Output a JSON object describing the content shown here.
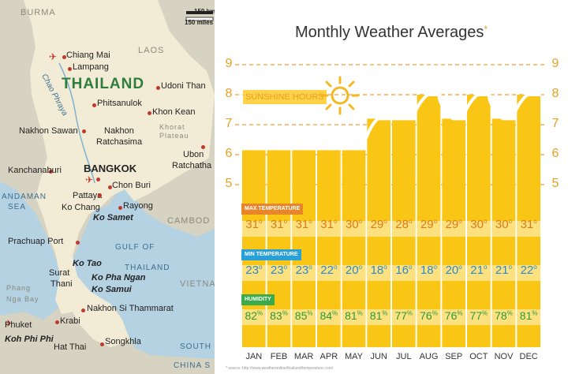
{
  "map": {
    "labels": {
      "burma": "BURMA",
      "laos": "LAOS",
      "thailand": "THAILAND",
      "chiang_mai": "Chiang Mai",
      "lampang": "Lampang",
      "chao_phraya": "Chao Phraya",
      "udoni_thani": "Udoni Than",
      "phitsanulok": "Phitsanulok",
      "khon_kean": "Khon Kean",
      "nakhon_sawan": "Nakhon Sawan",
      "nakhon_ratchasima_1": "Nakhon",
      "nakhon_ratchasima_2": "Ratchasima",
      "khorat_1": "Khorat",
      "khorat_2": "Plateau",
      "ubon_1": "Ubon",
      "ubon_2": "Ratchatha",
      "kanchanaburi": "Kanchanaburi",
      "bangkok": "BANGKOK",
      "andaman": "ANDAMAN",
      "sea": "SEA",
      "chon_buri": "Chon Buri",
      "pattaya": "Pattaya",
      "rayong": "Rayong",
      "ko_chang": "Ko Chang",
      "ko_samet": "Ko Samet",
      "cambodia": "CAMBOD",
      "prachuap": "Prachuap Port",
      "gulf_of": "GULF OF",
      "gulf_thailand": "THAILAND",
      "ko_tao": "Ko Tao",
      "ko_pha_ngan": "Ko Pha Ngan",
      "ko_samui": "Ko Samui",
      "surat_1": "Surat",
      "surat_2": "Thani",
      "phang_1": "Phang",
      "phang_2": "Nga Bay",
      "vietnam": "VIETNA",
      "nakhon_si": "Nakhon Si Thammarat",
      "phuket": "Phuket",
      "krabi": "Krabi",
      "koh_phi_phi": "Koh Phi Phi",
      "hat_yai": "Hat Thai",
      "songkhla": "Songkhla",
      "south": "SOUTH",
      "china_s": "CHINA S",
      "scale_km": "150 km",
      "scale_mi": "150 miles"
    }
  },
  "chart": {
    "title": "Monthly Weather Averages",
    "title_mark": "*",
    "sunshine_label": "SUNSHINE HOURS",
    "max_label": "MAX TEMPERATURE",
    "min_label": "MIN TEMPERATURE",
    "hum_label": "HUMIDITY",
    "degree": "o",
    "percent": "%",
    "source": "* source: http://www.weatheronline/thailand/temperature.com/"
  },
  "colors": {
    "bar_yellow": "#f9c616",
    "light_yellow": "#fde389",
    "band_orange": "#e8852a",
    "band_blue": "#2aa0d8",
    "band_green": "#3aaa4a",
    "sun_line": "#ffffff",
    "dash": "#f0a030",
    "land": "#f2ecd6",
    "sea_color": "#b4d2e2"
  },
  "chart_data": {
    "type": "area",
    "title": "Monthly Weather Averages",
    "categories": [
      "JAN",
      "FEB",
      "MAR",
      "APR",
      "MAY",
      "JUN",
      "JUL",
      "AUG",
      "SEP",
      "OCT",
      "NOV",
      "DEC"
    ],
    "yticks": [
      "5",
      "6",
      "7",
      "8",
      "9"
    ],
    "ylim": [
      4,
      9
    ],
    "series": [
      {
        "name": "SUNSHINE HOURS",
        "values": [
          6.2,
          6.2,
          6.2,
          6.2,
          6.2,
          7.2,
          7.2,
          8.0,
          7.2,
          8.0,
          7.2,
          8.0
        ]
      },
      {
        "name": "MAX TEMPERATURE",
        "values": [
          31,
          31,
          31,
          31,
          30,
          29,
          28,
          29,
          29,
          30,
          30,
          31
        ]
      },
      {
        "name": "MIN TEMPERATURE",
        "values": [
          23,
          23,
          23,
          22,
          20,
          18,
          16,
          18,
          20,
          21,
          21,
          22
        ]
      },
      {
        "name": "HUMIDITY",
        "values": [
          82,
          83,
          85,
          84,
          81,
          81,
          77,
          76,
          76,
          77,
          78,
          81
        ]
      }
    ]
  }
}
